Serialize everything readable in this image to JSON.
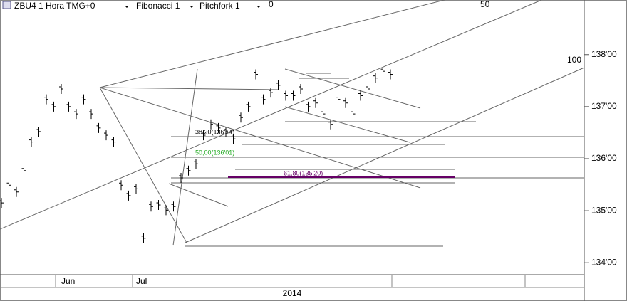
{
  "header": {
    "symbol": "ZBU4 1 Hora TMG+0",
    "tool1": "Fibonacci 1",
    "tool2": "Pitchfork 1"
  },
  "markers": [
    "0",
    "50",
    "100"
  ],
  "fibonacci_labels": [
    "38,20(136'14)",
    "50,00(136'01)",
    "61,80(135'20)"
  ],
  "chart_data": {
    "type": "bar-ticks",
    "color": "#000000",
    "categories": [
      null,
      null,
      null,
      null,
      null,
      null,
      null,
      null,
      "Jun",
      null,
      null,
      null,
      null,
      null,
      null,
      null,
      null,
      null,
      "Jul",
      null,
      null,
      null,
      null,
      null,
      null,
      null,
      null,
      null,
      null,
      null,
      null,
      null,
      null,
      null,
      null,
      null,
      null,
      null,
      null,
      null,
      null,
      null,
      null,
      null,
      null,
      null,
      null,
      null,
      null,
      null,
      null,
      null,
      null
    ],
    "values": [
      135.15,
      135.49,
      135.36,
      135.77,
      136.32,
      136.52,
      137.14,
      137.0,
      137.34,
      137.0,
      136.86,
      137.14,
      136.86,
      136.59,
      136.45,
      136.32,
      135.49,
      135.29,
      135.42,
      134.47,
      135.08,
      135.11,
      135.01,
      135.08,
      135.63,
      135.77,
      135.9,
      136.45,
      136.66,
      136.59,
      136.52,
      136.38,
      136.79,
      137.0,
      137.62,
      137.14,
      137.27,
      137.41,
      137.21,
      137.21,
      137.34,
      137.0,
      137.07,
      136.86,
      136.66,
      137.14,
      137.07,
      136.86,
      137.21,
      137.34,
      137.55,
      137.68,
      137.62
    ],
    "ylim": [
      133.77,
      139.05
    ],
    "yticks": [
      {
        "value": 134,
        "label": "134'00"
      },
      {
        "value": 135,
        "label": "135'00"
      },
      {
        "value": 136,
        "label": "136'00"
      },
      {
        "value": 137,
        "label": "137'00"
      },
      {
        "value": 138,
        "label": "138'00"
      }
    ],
    "year_label": "2014"
  }
}
